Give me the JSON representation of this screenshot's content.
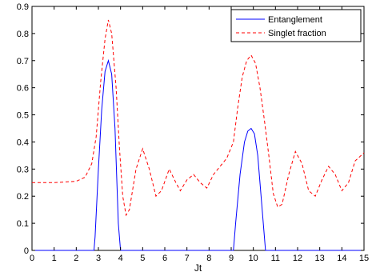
{
  "chart_data": {
    "type": "line",
    "title": "",
    "xlabel": "Jt",
    "ylabel": "",
    "xlim": [
      0,
      15
    ],
    "ylim": [
      0,
      0.9
    ],
    "xticks": [
      0,
      1,
      2,
      3,
      4,
      5,
      6,
      7,
      8,
      9,
      10,
      11,
      12,
      13,
      14,
      15
    ],
    "yticks": [
      0,
      0.1,
      0.2,
      0.3,
      0.4,
      0.5,
      0.6,
      0.7,
      0.8,
      0.9
    ],
    "xtick_labels": [
      "0",
      "1",
      "2",
      "3",
      "4",
      "5",
      "6",
      "7",
      "8",
      "9",
      "10",
      "11",
      "12",
      "13",
      "14",
      "15"
    ],
    "ytick_labels": [
      "0",
      "0.1",
      "0.2",
      "0.3",
      "0.4",
      "0.5",
      "0.6",
      "0.7",
      "0.8",
      "0.9"
    ],
    "grid": false,
    "legend_position": "top-right",
    "series": [
      {
        "name": "Entanglement",
        "color": "#0000ff",
        "style": "solid",
        "x": [
          0,
          2.8,
          2.85,
          3.0,
          3.15,
          3.3,
          3.45,
          3.6,
          3.75,
          3.9,
          4.0,
          9.1,
          9.2,
          9.4,
          9.6,
          9.75,
          9.9,
          10.05,
          10.2,
          10.4,
          10.55,
          15
        ],
        "y": [
          0,
          0,
          0.05,
          0.3,
          0.52,
          0.66,
          0.7,
          0.65,
          0.45,
          0.1,
          0,
          0,
          0.1,
          0.28,
          0.4,
          0.44,
          0.45,
          0.43,
          0.35,
          0.15,
          0,
          0
        ]
      },
      {
        "name": "Singlet fraction",
        "color": "#ff0000",
        "style": "dashed",
        "x": [
          0,
          1.0,
          2.0,
          2.4,
          2.7,
          2.9,
          3.1,
          3.3,
          3.45,
          3.6,
          3.8,
          3.95,
          4.1,
          4.25,
          4.4,
          4.7,
          5.0,
          5.3,
          5.6,
          5.85,
          6.2,
          6.5,
          6.7,
          7.0,
          7.3,
          7.6,
          7.9,
          8.2,
          8.5,
          8.8,
          9.1,
          9.3,
          9.5,
          9.7,
          9.9,
          10.1,
          10.3,
          10.5,
          10.7,
          10.9,
          11.1,
          11.3,
          11.6,
          11.9,
          12.2,
          12.5,
          12.8,
          13.1,
          13.4,
          13.7,
          14.0,
          14.3,
          14.6,
          15.0
        ],
        "y": [
          0.25,
          0.25,
          0.255,
          0.27,
          0.32,
          0.42,
          0.62,
          0.78,
          0.85,
          0.8,
          0.6,
          0.38,
          0.2,
          0.13,
          0.15,
          0.3,
          0.375,
          0.3,
          0.2,
          0.22,
          0.3,
          0.25,
          0.22,
          0.26,
          0.28,
          0.25,
          0.23,
          0.28,
          0.31,
          0.34,
          0.4,
          0.53,
          0.64,
          0.7,
          0.72,
          0.69,
          0.6,
          0.48,
          0.35,
          0.21,
          0.16,
          0.17,
          0.28,
          0.365,
          0.32,
          0.22,
          0.2,
          0.26,
          0.31,
          0.28,
          0.22,
          0.25,
          0.33,
          0.36
        ]
      }
    ]
  }
}
